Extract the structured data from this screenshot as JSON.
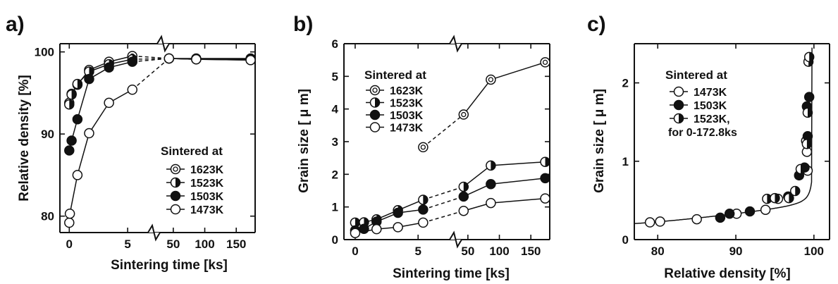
{
  "panels": [
    {
      "label": "a)",
      "chart_data": {
        "type": "line",
        "xlabel": "Sintering time [ks]",
        "ylabel": "Relative density [%]",
        "x_scale": "broken",
        "x_segments": [
          {
            "range": [
              -0.5,
              6.5
            ],
            "ticks": [
              0,
              5
            ]
          },
          {
            "range": [
              30,
              180
            ],
            "ticks": [
              50,
              100,
              150
            ]
          }
        ],
        "ylim": [
          78,
          101
        ],
        "y_ticks": [
          80,
          90,
          100
        ],
        "grid": false,
        "legend": {
          "title": "Sintered at",
          "placement": "right-middle"
        },
        "series": [
          {
            "name": "1623K",
            "marker": "double-circle",
            "x": [
              0,
              0.2,
              0.7,
              1.7,
              3.4,
              5.4,
              43.2,
              86.4,
              172.8
            ],
            "y": [
              93.8,
              94.9,
              96.0,
              97.8,
              98.8,
              99.5,
              99.2,
              99.2,
              99.2
            ],
            "dashed_after_index": 5
          },
          {
            "name": "1523K",
            "marker": "half-filled",
            "x": [
              0,
              0.2,
              0.7,
              1.7,
              3.4,
              5.4,
              43.2,
              86.4,
              172.8
            ],
            "y": [
              93.6,
              94.8,
              96.1,
              97.6,
              98.5,
              99.1,
              99.2,
              99.1,
              99.1
            ],
            "dashed_after_index": 5
          },
          {
            "name": "1503K",
            "marker": "filled",
            "x": [
              0,
              0.2,
              0.7,
              1.7,
              3.4,
              5.4,
              43.2,
              86.4,
              172.8
            ],
            "y": [
              88.0,
              89.2,
              91.8,
              96.7,
              98.1,
              98.8,
              99.2,
              99.1,
              99.0
            ],
            "dashed_after_index": 5
          },
          {
            "name": "1473K",
            "marker": "open",
            "x": [
              0,
              0.05,
              0.7,
              1.7,
              3.4,
              5.4,
              43.2,
              86.4,
              172.8
            ],
            "y": [
              79.2,
              80.3,
              85.0,
              90.1,
              93.8,
              95.4,
              99.2,
              99.1,
              99.0
            ],
            "dashed_after_index": 5
          }
        ]
      }
    },
    {
      "label": "b)",
      "chart_data": {
        "type": "line",
        "xlabel": "Sintering time [ks]",
        "ylabel": "Grain size [ μ m]",
        "x_scale": "broken",
        "x_segments": [
          {
            "range": [
              -0.5,
              6.5
            ],
            "ticks": [
              0,
              5
            ]
          },
          {
            "range": [
              30,
              180
            ],
            "ticks": [
              50,
              100,
              150
            ]
          }
        ],
        "ylim": [
          0,
          6
        ],
        "y_ticks": [
          0,
          1,
          2,
          3,
          4,
          5,
          6
        ],
        "grid": false,
        "legend": {
          "title": "Sintered at",
          "placement": "top-left"
        },
        "series": [
          {
            "name": "1623K",
            "marker": "double-circle",
            "x": [
              5.4,
              43.2,
              86.4,
              172.8
            ],
            "y": [
              2.83,
              3.83,
              4.9,
              5.43
            ],
            "dashed_after_index": 0
          },
          {
            "name": "1523K",
            "marker": "half-filled",
            "x": [
              0,
              0.7,
              1.7,
              3.4,
              5.4,
              43.2,
              86.4,
              172.8
            ],
            "y": [
              0.52,
              0.53,
              0.62,
              0.9,
              1.22,
              1.62,
              2.27,
              2.38
            ],
            "dashed_after_index": 4
          },
          {
            "name": "1503K",
            "marker": "filled",
            "x": [
              0,
              0.7,
              1.7,
              3.4,
              5.4,
              43.2,
              86.4,
              172.8
            ],
            "y": [
              0.28,
              0.33,
              0.55,
              0.82,
              0.92,
              1.32,
              1.7,
              1.88
            ],
            "dashed_after_index": 4
          },
          {
            "name": "1473K",
            "marker": "open",
            "x": [
              0,
              1.7,
              3.4,
              5.4,
              43.2,
              86.4,
              172.8
            ],
            "y": [
              0.2,
              0.32,
              0.38,
              0.52,
              0.88,
              1.12,
              1.26
            ],
            "dashed_after_index": 3
          }
        ]
      }
    },
    {
      "label": "c)",
      "chart_data": {
        "type": "scatter",
        "xlabel": "Relative density [%]",
        "ylabel": "Grain size [ μ m]",
        "xlim": [
          77,
          102
        ],
        "x_ticks": [
          80,
          90,
          100
        ],
        "ylim": [
          0,
          2.5
        ],
        "y_ticks": [
          0,
          1,
          2
        ],
        "grid": false,
        "trend_line": true,
        "legend": {
          "title": "Sintered at",
          "placement": "top-left"
        },
        "series": [
          {
            "name": "1473K",
            "marker": "open",
            "points": [
              [
                79.0,
                0.22
              ],
              [
                80.3,
                0.23
              ],
              [
                85.0,
                0.26
              ],
              [
                90.1,
                0.33
              ],
              [
                93.8,
                0.38
              ],
              [
                95.4,
                0.52
              ],
              [
                99.2,
                0.88
              ],
              [
                99.1,
                1.12
              ],
              [
                99.0,
                1.26
              ]
            ]
          },
          {
            "name": "1503K",
            "marker": "filled",
            "points": [
              [
                88.0,
                0.28
              ],
              [
                89.2,
                0.33
              ],
              [
                91.8,
                0.36
              ],
              [
                96.7,
                0.55
              ],
              [
                98.1,
                0.82
              ],
              [
                98.8,
                0.92
              ],
              [
                99.2,
                1.32
              ],
              [
                99.1,
                1.7
              ],
              [
                99.4,
                1.82
              ]
            ]
          },
          {
            "name": "1523K,",
            "sublabel": "for 0-172.8ks",
            "marker": "half-filled",
            "points": [
              [
                94.0,
                0.52
              ],
              [
                95.0,
                0.53
              ],
              [
                96.8,
                0.53
              ],
              [
                97.6,
                0.62
              ],
              [
                98.3,
                0.9
              ],
              [
                99.1,
                1.22
              ],
              [
                99.2,
                1.62
              ],
              [
                99.3,
                2.27
              ],
              [
                99.4,
                2.33
              ]
            ]
          }
        ]
      }
    }
  ],
  "colors": {
    "ink": "#111111",
    "paper": "#ffffff"
  }
}
